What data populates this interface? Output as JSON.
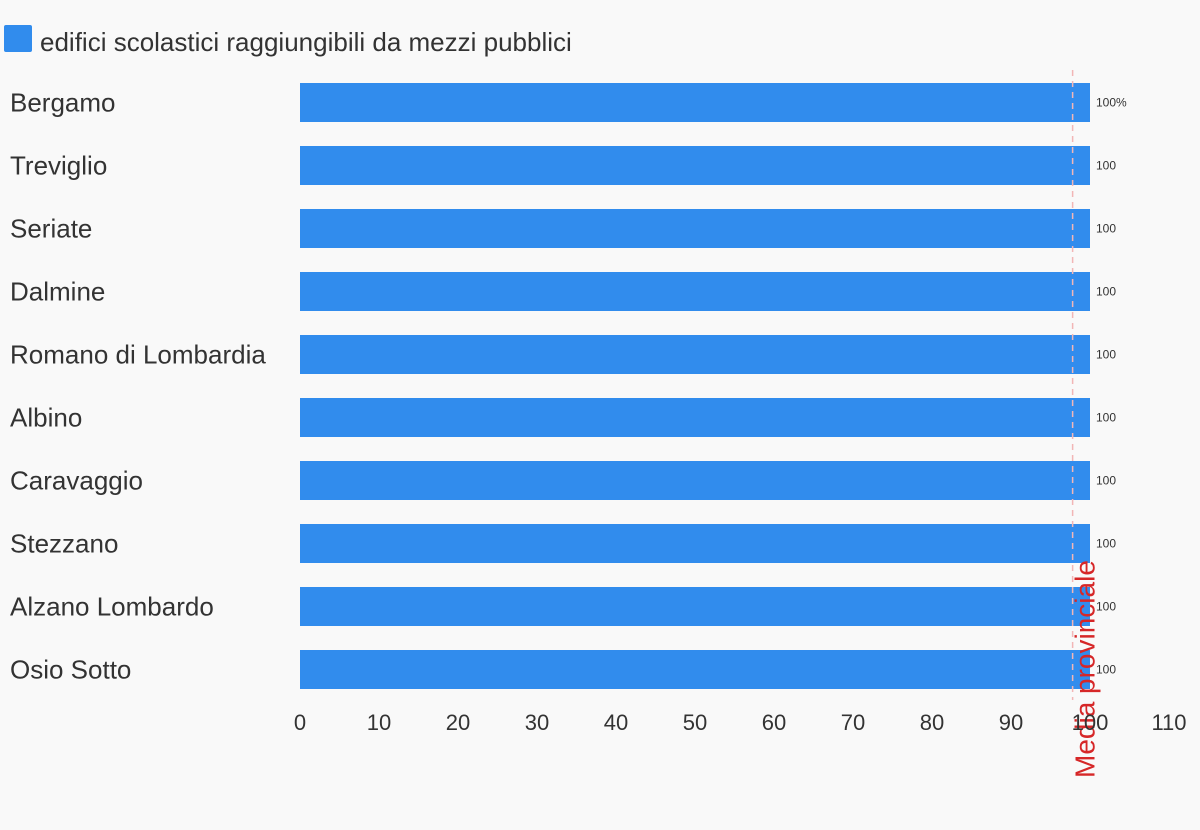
{
  "chart_data": {
    "type": "bar",
    "orientation": "horizontal",
    "legend": {
      "position": "top-left",
      "entries": [
        "edifici scolastici raggiungibili da mezzi pubblici"
      ]
    },
    "categories": [
      "Bergamo",
      "Treviglio",
      "Seriate",
      "Dalmine",
      "Romano di Lombardia",
      "Albino",
      "Caravaggio",
      "Stezzano",
      "Alzano Lombardo",
      "Osio Sotto"
    ],
    "series": [
      {
        "name": "edifici scolastici raggiungibili da mezzi pubblici",
        "values": [
          100,
          100,
          100,
          100,
          100,
          100,
          100,
          100,
          100,
          100
        ]
      }
    ],
    "value_labels": [
      "100%",
      "100",
      "100",
      "100",
      "100",
      "100",
      "100",
      "100",
      "100",
      "100"
    ],
    "xlim": [
      0,
      110
    ],
    "xticks": [
      "0",
      "10",
      "20",
      "30",
      "40",
      "50",
      "60",
      "70",
      "80",
      "90",
      "100",
      "110"
    ],
    "grid": false,
    "reference_line": {
      "label": "Media provinciale",
      "value": 97.8
    },
    "colors": {
      "bar": "#318ced",
      "reference": "#d62728",
      "reference_line": "#f2b6b6",
      "text": "#333333",
      "background": "#f9f9f9"
    }
  }
}
